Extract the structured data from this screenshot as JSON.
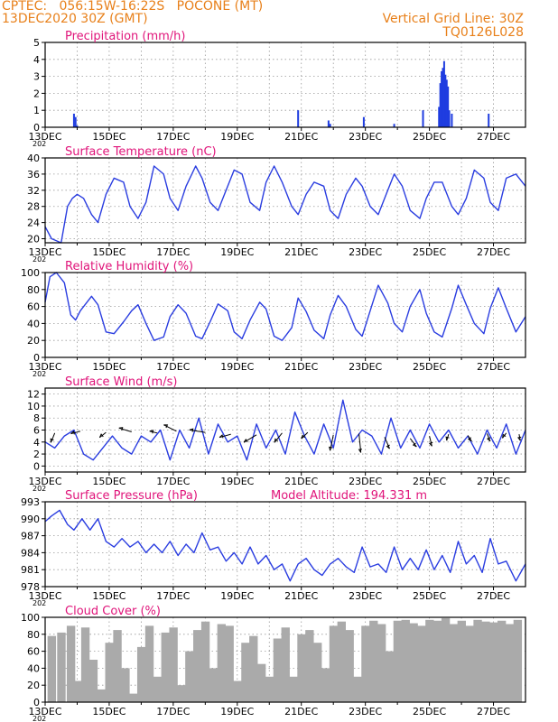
{
  "header": {
    "line1_left": "CPTEC:   056:15W-16:22S   POCONE (MT)",
    "line2_left": "13DEC2020 30Z (GMT)",
    "line1_right": "Vertical Grid Line: 30Z",
    "line2_right": "TQ0126L028"
  },
  "colors": {
    "header": "#e8801a",
    "title": "#e0147a",
    "line": "#2a3de0",
    "bar": "#1f3de0",
    "cloud": "#aaaaaa",
    "wind": "#000000"
  },
  "x_ticks": [
    "13DEC",
    "15DEC",
    "17DEC",
    "19DEC",
    "21DEC",
    "23DEC",
    "25DEC",
    "27DEC"
  ],
  "x_year_stub": "202",
  "chart_data": [
    {
      "id": "precip",
      "type": "bar",
      "title": "Precipitation (mm/h)",
      "ylim": [
        0,
        5
      ],
      "yticks": [
        "0",
        "1",
        "2",
        "3",
        "4",
        "5"
      ],
      "x_unit": "day_from_13DEC",
      "xlim": [
        0,
        15
      ],
      "x": [
        0.9,
        0.95,
        1.0,
        7.9,
        8.85,
        8.9,
        9.95,
        10.9,
        11.8,
        12.3,
        12.34,
        12.38,
        12.42,
        12.46,
        12.5,
        12.54,
        12.58,
        12.62,
        12.7,
        13.85
      ],
      "values": [
        0.8,
        0.6,
        0.1,
        1.0,
        0.4,
        0.2,
        0.6,
        0.2,
        1.0,
        1.2,
        2.6,
        3.3,
        3.5,
        3.9,
        3.1,
        2.8,
        2.4,
        1.0,
        0.8,
        0.8
      ]
    },
    {
      "id": "temp",
      "type": "line",
      "title": "Surface Temperature (nC)",
      "ylim": [
        19,
        40
      ],
      "yticks": [
        "20",
        "24",
        "28",
        "32",
        "36",
        "40"
      ],
      "x_unit": "day_from_13DEC",
      "xlim": [
        0,
        15
      ],
      "x": [
        0,
        0.2,
        0.5,
        0.7,
        0.85,
        1.0,
        1.2,
        1.45,
        1.65,
        1.9,
        2.15,
        2.45,
        2.65,
        2.9,
        3.15,
        3.4,
        3.7,
        3.9,
        4.15,
        4.4,
        4.7,
        4.9,
        5.15,
        5.4,
        5.7,
        5.9,
        6.15,
        6.4,
        6.7,
        6.9,
        7.15,
        7.4,
        7.7,
        7.9,
        8.15,
        8.4,
        8.7,
        8.9,
        9.15,
        9.4,
        9.7,
        9.9,
        10.15,
        10.4,
        10.7,
        10.9,
        11.15,
        11.4,
        11.7,
        11.9,
        12.15,
        12.4,
        12.7,
        12.9,
        13.15,
        13.4,
        13.7,
        13.9,
        14.15,
        14.4,
        14.7,
        15.0
      ],
      "values": [
        23,
        20,
        19,
        28,
        30,
        31,
        30,
        26,
        24,
        31,
        35,
        34,
        28,
        25,
        29,
        38,
        36,
        30,
        27,
        33,
        38,
        35,
        29,
        27,
        33,
        37,
        36,
        29,
        27,
        34,
        38,
        34,
        28,
        26,
        31,
        34,
        33,
        27,
        25,
        31,
        35,
        33,
        28,
        26,
        32,
        36,
        33,
        27,
        25,
        30,
        34,
        34,
        28,
        26,
        30,
        37,
        35,
        29,
        27,
        35,
        36,
        33
      ]
    },
    {
      "id": "rh",
      "type": "line",
      "title": "Relative Humidity (%)",
      "ylim": [
        0,
        100
      ],
      "yticks": [
        "0",
        "20",
        "40",
        "60",
        "80",
        "100"
      ],
      "x_unit": "day_from_13DEC",
      "xlim": [
        0,
        15
      ],
      "x": [
        0,
        0.15,
        0.35,
        0.6,
        0.8,
        0.95,
        1.1,
        1.45,
        1.65,
        1.9,
        2.15,
        2.45,
        2.7,
        2.9,
        3.15,
        3.4,
        3.7,
        3.9,
        4.15,
        4.4,
        4.7,
        4.9,
        5.15,
        5.4,
        5.7,
        5.9,
        6.15,
        6.4,
        6.7,
        6.9,
        7.15,
        7.4,
        7.7,
        7.9,
        8.15,
        8.4,
        8.7,
        8.9,
        9.15,
        9.4,
        9.7,
        9.9,
        10.15,
        10.4,
        10.7,
        10.9,
        11.15,
        11.4,
        11.7,
        11.9,
        12.15,
        12.4,
        12.7,
        12.9,
        13.15,
        13.4,
        13.7,
        13.9,
        14.15,
        14.4,
        14.7,
        15.0
      ],
      "values": [
        65,
        95,
        100,
        88,
        50,
        44,
        55,
        72,
        62,
        30,
        28,
        42,
        55,
        62,
        40,
        20,
        24,
        48,
        62,
        52,
        25,
        22,
        42,
        63,
        55,
        30,
        22,
        44,
        65,
        57,
        25,
        20,
        35,
        70,
        54,
        32,
        22,
        50,
        73,
        60,
        33,
        25,
        55,
        85,
        64,
        40,
        30,
        60,
        80,
        52,
        30,
        24,
        58,
        85,
        62,
        40,
        28,
        58,
        82,
        58,
        30,
        48
      ]
    },
    {
      "id": "wind",
      "type": "line",
      "title": "Surface Wind (m/s)",
      "ylim": [
        -1,
        13
      ],
      "yticks": [
        "0",
        "2",
        "4",
        "6",
        "8",
        "10",
        "12"
      ],
      "x_unit": "day_from_13DEC",
      "xlim": [
        0,
        15
      ],
      "x": [
        0,
        0.3,
        0.6,
        0.9,
        1.2,
        1.5,
        1.8,
        2.1,
        2.4,
        2.7,
        3.0,
        3.3,
        3.6,
        3.9,
        4.2,
        4.5,
        4.8,
        5.1,
        5.4,
        5.7,
        6.0,
        6.3,
        6.6,
        6.9,
        7.2,
        7.5,
        7.8,
        8.1,
        8.4,
        8.7,
        9.0,
        9.3,
        9.6,
        9.9,
        10.2,
        10.5,
        10.8,
        11.1,
        11.4,
        11.7,
        12.0,
        12.3,
        12.6,
        12.9,
        13.2,
        13.5,
        13.8,
        14.1,
        14.4,
        14.7,
        15.0
      ],
      "values": [
        4,
        3,
        5,
        6,
        2,
        1,
        3,
        5,
        3,
        2,
        5,
        4,
        6,
        1,
        6,
        3,
        8,
        2,
        7,
        4,
        5,
        1,
        7,
        3,
        6,
        2,
        9,
        5,
        2,
        7,
        3,
        11,
        4,
        6,
        5,
        2,
        8,
        3,
        6,
        3,
        7,
        4,
        6,
        3,
        5,
        2,
        6,
        3,
        7,
        2,
        6
      ],
      "arrow_x": [
        0.3,
        1.1,
        1.9,
        2.7,
        3.5,
        4.1,
        5.0,
        5.8,
        6.6,
        7.4,
        8.2,
        9.0,
        9.8,
        10.6,
        11.4,
        12.0,
        12.6,
        13.2,
        13.8,
        14.4,
        14.8
      ],
      "arrow_y": [
        5.5,
        5.8,
        5.6,
        5.7,
        5.5,
        5.8,
        5.6,
        5.3,
        5.2,
        5.5,
        5.6,
        5.2,
        5.4,
        4.8,
        4.6,
        5.0,
        5.3,
        5.1,
        5.4,
        5.5,
        5.3
      ],
      "arrow_u": [
        -0.6,
        -1.5,
        -1.0,
        -2.0,
        -1.2,
        -2.0,
        -2.5,
        -1.8,
        -2.0,
        -1.2,
        -1.0,
        -0.5,
        0.3,
        0.8,
        1.0,
        0.4,
        -0.3,
        0.6,
        0.5,
        -0.6,
        0.2
      ],
      "arrow_v": [
        -1.5,
        -0.4,
        -0.8,
        0.6,
        0.3,
        1.0,
        0.4,
        -0.5,
        -1.2,
        -1.5,
        -1.0,
        -2.5,
        -3.0,
        -1.8,
        -1.3,
        -1.6,
        -1.0,
        -0.9,
        -1.2,
        -0.8,
        -1.0
      ]
    },
    {
      "id": "pres",
      "type": "line",
      "title": "Surface Pressure (hPa)",
      "subtitle": "Model Altitude: 194.331 m",
      "ylim": [
        978,
        993
      ],
      "yticks": [
        "978",
        "981",
        "984",
        "987",
        "990",
        "993"
      ],
      "x_unit": "day_from_13DEC",
      "xlim": [
        0,
        15
      ],
      "x": [
        0,
        0.2,
        0.45,
        0.7,
        0.9,
        1.15,
        1.4,
        1.65,
        1.9,
        2.15,
        2.4,
        2.65,
        2.9,
        3.15,
        3.4,
        3.65,
        3.9,
        4.15,
        4.4,
        4.65,
        4.9,
        5.15,
        5.4,
        5.65,
        5.9,
        6.15,
        6.4,
        6.65,
        6.9,
        7.15,
        7.4,
        7.65,
        7.9,
        8.15,
        8.4,
        8.65,
        8.9,
        9.15,
        9.4,
        9.65,
        9.9,
        10.15,
        10.4,
        10.65,
        10.9,
        11.15,
        11.4,
        11.65,
        11.9,
        12.15,
        12.4,
        12.65,
        12.9,
        13.15,
        13.4,
        13.65,
        13.9,
        14.15,
        14.4,
        14.7,
        15.0
      ],
      "values": [
        989.5,
        990.5,
        991.5,
        989,
        988,
        990,
        988,
        990,
        986,
        985,
        986.5,
        985,
        986,
        984,
        985.5,
        984,
        986,
        983.5,
        985.5,
        984,
        987.5,
        984.5,
        985,
        982.5,
        984,
        982,
        985,
        982,
        983.5,
        981,
        982,
        979,
        982,
        983,
        981,
        980,
        982,
        983,
        981.5,
        980.5,
        985,
        981.5,
        982,
        980.5,
        985,
        981,
        983,
        981,
        984.5,
        981,
        983.5,
        980.5,
        986,
        982,
        983.5,
        980.5,
        986.5,
        982,
        982.5,
        979,
        982
      ]
    },
    {
      "id": "cloud",
      "type": "bar",
      "title": "Cloud Cover (%)",
      "ylim": [
        0,
        100
      ],
      "yticks": [
        "0",
        "20",
        "40",
        "60",
        "80",
        "100"
      ],
      "x_unit": "day_from_13DEC",
      "xlim": [
        0,
        15
      ],
      "x": [
        0.2,
        0.5,
        0.8,
        1.0,
        1.25,
        1.5,
        1.75,
        2.0,
        2.25,
        2.5,
        2.75,
        3.0,
        3.25,
        3.5,
        3.75,
        4.0,
        4.25,
        4.5,
        4.75,
        5.0,
        5.25,
        5.5,
        5.75,
        6.0,
        6.25,
        6.5,
        6.75,
        7.0,
        7.25,
        7.5,
        7.75,
        8.0,
        8.25,
        8.5,
        8.75,
        9.0,
        9.25,
        9.5,
        9.75,
        10.0,
        10.25,
        10.5,
        10.75,
        11.0,
        11.25,
        11.5,
        11.75,
        12.0,
        12.25,
        12.5,
        12.75,
        13.0,
        13.25,
        13.5,
        13.75,
        14.0,
        14.25,
        14.5,
        14.75
      ],
      "values": [
        78,
        82,
        90,
        25,
        88,
        50,
        15,
        70,
        85,
        40,
        10,
        65,
        90,
        30,
        82,
        88,
        20,
        60,
        85,
        95,
        40,
        92,
        90,
        25,
        70,
        78,
        45,
        30,
        75,
        88,
        30,
        80,
        85,
        70,
        40,
        90,
        95,
        85,
        30,
        90,
        96,
        92,
        60,
        96,
        97,
        93,
        90,
        97,
        96,
        99,
        92,
        96,
        90,
        97,
        95,
        94,
        96,
        92,
        97
      ]
    }
  ]
}
